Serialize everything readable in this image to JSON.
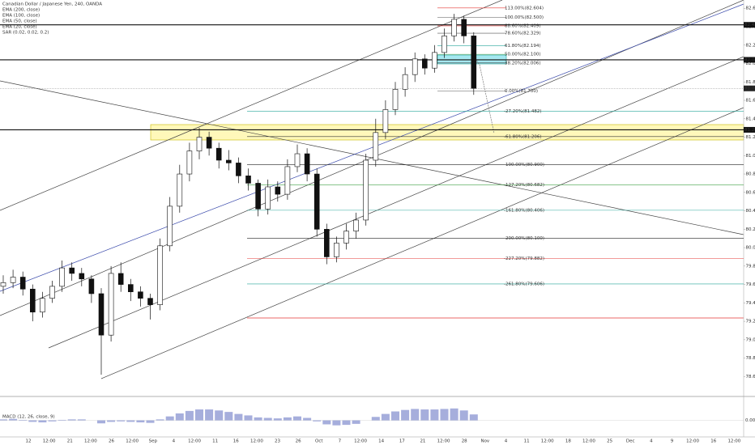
{
  "chart_data": {
    "type": "candlestick",
    "title": "Canadian Dollar / Japanese Yen, 240, OANDA",
    "indicators": [
      "EMA (200, close)",
      "EMA (100, close)",
      "EMA (50, close)",
      "EMA (20, close)",
      "SAR (0.02, 0.02, 0.2)"
    ],
    "ylim": [
      78.41,
      82.69
    ],
    "yticks": [
      {
        "value": 82.6,
        "label": "82.60"
      },
      {
        "value": 82.4,
        "label": "82.40"
      },
      {
        "value": 82.2,
        "label": "82.20"
      },
      {
        "value": 82.0,
        "label": "82.00"
      },
      {
        "value": 81.8,
        "label": "81.80"
      },
      {
        "value": 81.6,
        "label": "81.60"
      },
      {
        "value": 81.4,
        "label": "81.40"
      },
      {
        "value": 81.2,
        "label": "81.20"
      },
      {
        "value": 81.0,
        "label": "81.00"
      },
      {
        "value": 80.8,
        "label": "80.80"
      },
      {
        "value": 80.6,
        "label": "80.60"
      },
      {
        "value": 80.4,
        "label": "80.40"
      },
      {
        "value": 80.2,
        "label": "80.20"
      },
      {
        "value": 80.0,
        "label": "80.00"
      },
      {
        "value": 79.8,
        "label": "79.80"
      },
      {
        "value": 79.6,
        "label": "79.60"
      },
      {
        "value": 79.4,
        "label": "79.40"
      },
      {
        "value": 79.2,
        "label": "79.20"
      },
      {
        "value": 79.0,
        "label": "79.00"
      },
      {
        "value": 78.8,
        "label": "78.80"
      },
      {
        "value": 78.6,
        "label": "78.60"
      }
    ],
    "x_labels": [
      "12",
      "12:00",
      "21",
      "12:00",
      "26",
      "12:00",
      "Sep",
      "4",
      "12:00",
      "11",
      "16",
      "12:00",
      "23",
      "26",
      "Oct",
      "7",
      "12:00",
      "14",
      "17",
      "21",
      "12:00",
      "28",
      "Nov",
      "4",
      "11",
      "12:00",
      "18",
      "12:00",
      "25",
      "Dec",
      "4",
      "9",
      "12:00",
      "16",
      "12:00"
    ],
    "candles": [
      [
        79.58,
        79.7,
        79.5,
        79.62
      ],
      [
        79.62,
        79.76,
        79.56,
        79.68
      ],
      [
        79.68,
        79.74,
        79.48,
        79.55
      ],
      [
        79.55,
        79.6,
        79.2,
        79.3
      ],
      [
        79.3,
        79.52,
        79.24,
        79.45
      ],
      [
        79.45,
        79.64,
        79.4,
        79.58
      ],
      [
        79.58,
        79.86,
        79.52,
        79.78
      ],
      [
        79.78,
        79.84,
        79.64,
        79.72
      ],
      [
        79.72,
        79.78,
        79.58,
        79.66
      ],
      [
        79.66,
        79.7,
        79.4,
        79.5
      ],
      [
        79.5,
        79.56,
        78.62,
        79.05
      ],
      [
        79.05,
        79.8,
        78.98,
        79.72
      ],
      [
        79.72,
        79.84,
        79.52,
        79.6
      ],
      [
        79.6,
        79.66,
        79.42,
        79.52
      ],
      [
        79.52,
        79.58,
        79.36,
        79.45
      ],
      [
        79.45,
        79.5,
        79.22,
        79.38
      ],
      [
        79.38,
        80.1,
        79.32,
        80.02
      ],
      [
        80.02,
        80.55,
        79.96,
        80.45
      ],
      [
        80.45,
        80.9,
        80.38,
        80.8
      ],
      [
        80.8,
        81.14,
        80.72,
        81.05
      ],
      [
        81.05,
        81.3,
        80.96,
        81.2
      ],
      [
        81.2,
        81.26,
        81.0,
        81.08
      ],
      [
        81.08,
        81.14,
        80.86,
        80.95
      ],
      [
        80.95,
        81.06,
        80.84,
        80.92
      ],
      [
        80.92,
        80.98,
        80.7,
        80.78
      ],
      [
        80.78,
        80.86,
        80.62,
        80.7
      ],
      [
        80.7,
        80.74,
        80.34,
        80.42
      ],
      [
        80.42,
        80.74,
        80.36,
        80.66
      ],
      [
        80.66,
        80.72,
        80.5,
        80.58
      ],
      [
        80.58,
        80.96,
        80.52,
        80.88
      ],
      [
        80.88,
        81.12,
        80.82,
        81.02
      ],
      [
        81.02,
        81.08,
        80.72,
        80.8
      ],
      [
        80.8,
        80.86,
        80.12,
        80.2
      ],
      [
        80.2,
        80.26,
        79.82,
        79.9
      ],
      [
        79.9,
        80.12,
        79.84,
        80.05
      ],
      [
        80.05,
        80.26,
        79.98,
        80.18
      ],
      [
        80.18,
        80.38,
        80.1,
        80.3
      ],
      [
        80.3,
        81.02,
        80.24,
        80.95
      ],
      [
        80.95,
        81.4,
        80.88,
        81.25
      ],
      [
        81.25,
        81.6,
        81.18,
        81.5
      ],
      [
        81.5,
        81.8,
        81.44,
        81.72
      ],
      [
        81.72,
        81.96,
        81.64,
        81.88
      ],
      [
        81.88,
        82.12,
        81.8,
        82.05
      ],
      [
        82.05,
        82.1,
        81.88,
        81.95
      ],
      [
        81.95,
        82.2,
        81.9,
        82.12
      ],
      [
        82.12,
        82.38,
        82.06,
        82.3
      ],
      [
        82.3,
        82.54,
        82.24,
        82.48
      ],
      [
        82.48,
        82.52,
        82.22,
        82.3
      ],
      [
        82.3,
        82.34,
        81.66,
        81.73
      ]
    ],
    "fib_levels": [
      {
        "label": "113.00%(82.604)",
        "price": 82.604,
        "color": "#e53935"
      },
      {
        "label": "100.00%(82.500)",
        "price": 82.5,
        "color": "#555555"
      },
      {
        "label": "88.60%(82.409)",
        "price": 82.409,
        "color": "#e53935"
      },
      {
        "label": "78.60%(82.329)",
        "price": 82.329,
        "color": "#555555"
      },
      {
        "label": "61.80%(82.194)",
        "price": 82.194,
        "color": "#26a69a"
      },
      {
        "label": "50.00%(82.100)",
        "price": 82.1,
        "color": "#43a047"
      },
      {
        "label": "38.20%(82.006)",
        "price": 82.006,
        "color": "#333333"
      },
      {
        "label": "0.00%(81.700)",
        "price": 81.7,
        "color": "#777777"
      },
      {
        "label": "-27.20%(81.482)",
        "price": 81.482,
        "color": "#26a69a"
      },
      {
        "label": "-61.80%(81.206)",
        "price": 81.206,
        "color": "#333333"
      },
      {
        "label": "-100.00%(80.900)",
        "price": 80.9,
        "color": "#222222"
      },
      {
        "label": "-127.20%(80.682)",
        "price": 80.682,
        "color": "#43a047"
      },
      {
        "label": "-161.80%(80.406)",
        "price": 80.406,
        "color": "#26a69a"
      },
      {
        "label": "-200.00%(80.100)",
        "price": 80.1,
        "color": "#222222"
      },
      {
        "label": "-227.20%(79.882)",
        "price": 79.882,
        "color": "#e53935"
      },
      {
        "label": "-261.80%(79.606)",
        "price": 79.606,
        "color": "#26a69a"
      }
    ],
    "levels": [
      {
        "price": 82.42,
        "label": "82.420"
      },
      {
        "price": 82.04,
        "label": "82.040"
      },
      {
        "price": 81.28,
        "label": "81.280"
      }
    ],
    "last_price": {
      "value": 81.73,
      "label": "81.730"
    },
    "macd_title": "MACD (12, 26, close, 9)",
    "macd_ylim": [
      -0.3,
      0.4
    ],
    "macd_yticks": [
      {
        "value": 0,
        "label": "0.000"
      }
    ],
    "macd_color": "#5c6bc0",
    "macd_values": [
      0.02,
      0.03,
      0.01,
      -0.03,
      -0.04,
      -0.02,
      0.01,
      0.02,
      0.02,
      0.0,
      -0.06,
      -0.03,
      -0.02,
      -0.03,
      -0.04,
      -0.05,
      0.02,
      0.08,
      0.14,
      0.19,
      0.22,
      0.22,
      0.2,
      0.17,
      0.13,
      0.1,
      0.06,
      0.05,
      0.04,
      0.06,
      0.08,
      0.05,
      -0.02,
      -0.08,
      -0.1,
      -0.09,
      -0.07,
      0.0,
      0.07,
      0.13,
      0.18,
      0.21,
      0.23,
      0.22,
      0.22,
      0.23,
      0.24,
      0.2,
      0.12
    ]
  }
}
